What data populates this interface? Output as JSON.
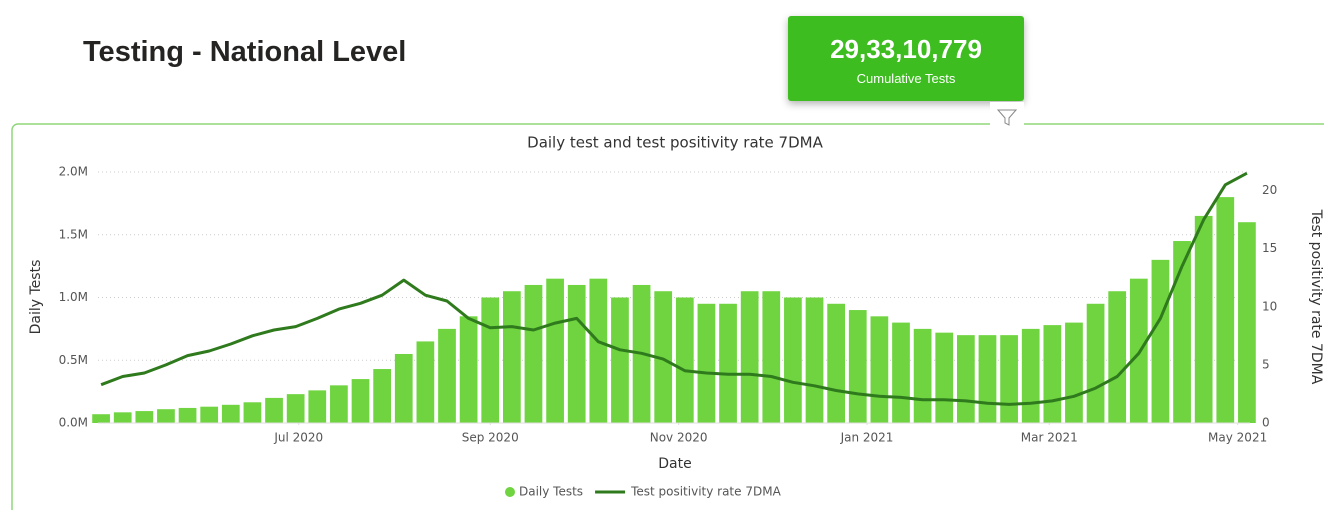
{
  "header": {
    "title": "Testing - National Level"
  },
  "kpi": {
    "value": "29,33,10,779",
    "label": "Cumulative Tests"
  },
  "chart_data": {
    "type": "bar_line",
    "title": "Daily test and test positivity rate 7DMA",
    "x_label": "Date",
    "y_label": "Daily Tests",
    "y2_label": "Test positivity rate 7DMA",
    "x": [
      "2020-04-28",
      "2020-05-05",
      "2020-05-12",
      "2020-05-19",
      "2020-05-26",
      "2020-06-02",
      "2020-06-09",
      "2020-06-16",
      "2020-06-23",
      "2020-06-30",
      "2020-07-07",
      "2020-07-14",
      "2020-07-21",
      "2020-07-28",
      "2020-08-04",
      "2020-08-11",
      "2020-08-18",
      "2020-08-25",
      "2020-09-01",
      "2020-09-08",
      "2020-09-15",
      "2020-09-22",
      "2020-09-29",
      "2020-10-06",
      "2020-10-13",
      "2020-10-20",
      "2020-10-27",
      "2020-11-03",
      "2020-11-10",
      "2020-11-17",
      "2020-11-24",
      "2020-12-01",
      "2020-12-08",
      "2020-12-15",
      "2020-12-22",
      "2020-12-29",
      "2021-01-05",
      "2021-01-12",
      "2021-01-19",
      "2021-01-26",
      "2021-02-02",
      "2021-02-09",
      "2021-02-16",
      "2021-02-23",
      "2021-03-02",
      "2021-03-09",
      "2021-03-16",
      "2021-03-23",
      "2021-03-30",
      "2021-04-06",
      "2021-04-13",
      "2021-04-20",
      "2021-04-27",
      "2021-05-04"
    ],
    "series": [
      {
        "name": "Daily Tests",
        "type": "bar",
        "color": "#6fd440",
        "axis": "y",
        "values": [
          70000,
          85000,
          95000,
          110000,
          120000,
          130000,
          145000,
          165000,
          200000,
          230000,
          260000,
          300000,
          350000,
          430000,
          550000,
          650000,
          750000,
          850000,
          1000000,
          1050000,
          1100000,
          1150000,
          1100000,
          1150000,
          1000000,
          1100000,
          1050000,
          1000000,
          950000,
          950000,
          1050000,
          1050000,
          1000000,
          1000000,
          950000,
          900000,
          850000,
          800000,
          750000,
          720000,
          700000,
          700000,
          700000,
          750000,
          780000,
          800000,
          950000,
          1050000,
          1150000,
          1300000,
          1450000,
          1650000,
          1800000,
          1600000
        ]
      },
      {
        "name": "Test positivity rate 7DMA",
        "type": "line",
        "color": "#2f7a1d",
        "axis": "y2",
        "values": [
          3.3,
          4.0,
          4.3,
          5.0,
          5.8,
          6.2,
          6.8,
          7.5,
          8.0,
          8.3,
          9.0,
          9.8,
          10.3,
          11.0,
          12.3,
          11.0,
          10.5,
          9.0,
          8.2,
          8.3,
          8.0,
          8.6,
          9.0,
          7.0,
          6.3,
          6.0,
          5.5,
          4.5,
          4.3,
          4.2,
          4.2,
          4.0,
          3.5,
          3.2,
          2.8,
          2.5,
          2.3,
          2.2,
          2.0,
          2.0,
          1.9,
          1.7,
          1.6,
          1.7,
          1.9,
          2.3,
          3.0,
          4.0,
          6.0,
          9.0,
          13.5,
          17.5,
          20.5,
          21.5
        ]
      }
    ],
    "xlim": [
      "2020-04-27",
      "2021-05-05"
    ],
    "xticks": [
      {
        "value": "2020-07-01",
        "label": "Jul 2020"
      },
      {
        "value": "2020-09-01",
        "label": "Sep 2020"
      },
      {
        "value": "2020-11-01",
        "label": "Nov 2020"
      },
      {
        "value": "2021-01-01",
        "label": "Jan 2021"
      },
      {
        "value": "2021-03-01",
        "label": "Mar 2021"
      },
      {
        "value": "2021-05-01",
        "label": "May 2021"
      }
    ],
    "ylim": [
      0,
      2000000
    ],
    "yticks": [
      {
        "value": 0,
        "label": "0.0M"
      },
      {
        "value": 500000,
        "label": "0.5M"
      },
      {
        "value": 1000000,
        "label": "1.0M"
      },
      {
        "value": 1500000,
        "label": "1.5M"
      },
      {
        "value": 2000000,
        "label": "2.0M"
      }
    ],
    "y2lim": [
      0,
      21.6
    ],
    "y2ticks": [
      0,
      5,
      10,
      15,
      20
    ],
    "grid": true,
    "legend": "bottom"
  }
}
